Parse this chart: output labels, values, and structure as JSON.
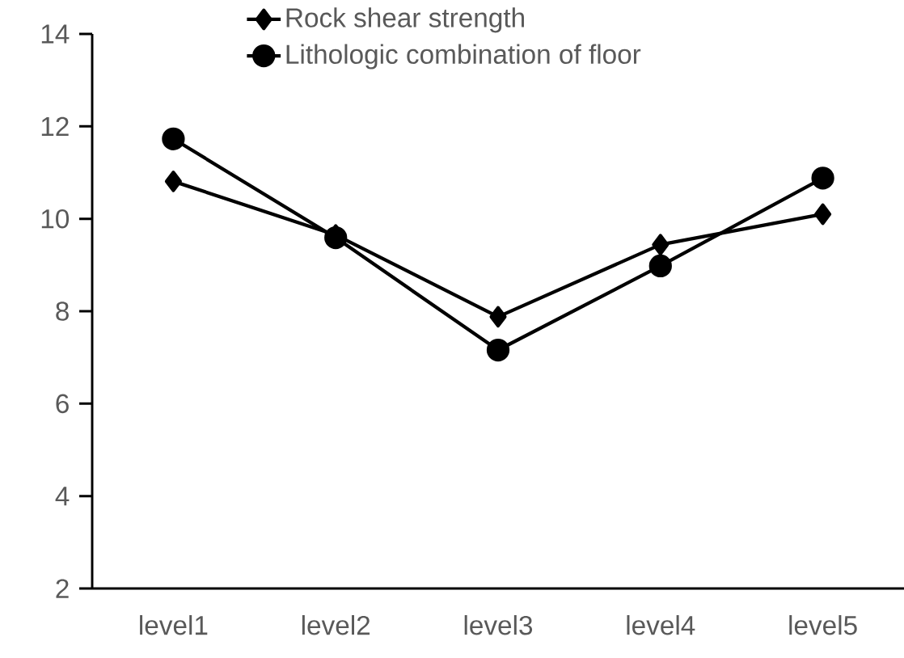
{
  "chart_data": {
    "type": "line",
    "categories": [
      "level1",
      "level2",
      "level3",
      "level4",
      "level5"
    ],
    "series": [
      {
        "name": "Rock shear strength",
        "color": "#000000",
        "marker": "diamond",
        "values": [
          10.81,
          9.65,
          7.88,
          9.44,
          10.1
        ]
      },
      {
        "name": "Lithologic combination of floor",
        "color": "#000000",
        "marker": "circle",
        "values": [
          11.73,
          9.59,
          7.16,
          8.98,
          10.88
        ]
      }
    ],
    "ylim": [
      2,
      14
    ],
    "yticks": [
      2,
      4,
      6,
      8,
      10,
      12,
      14
    ],
    "legend": "top",
    "line_style": "solid"
  }
}
